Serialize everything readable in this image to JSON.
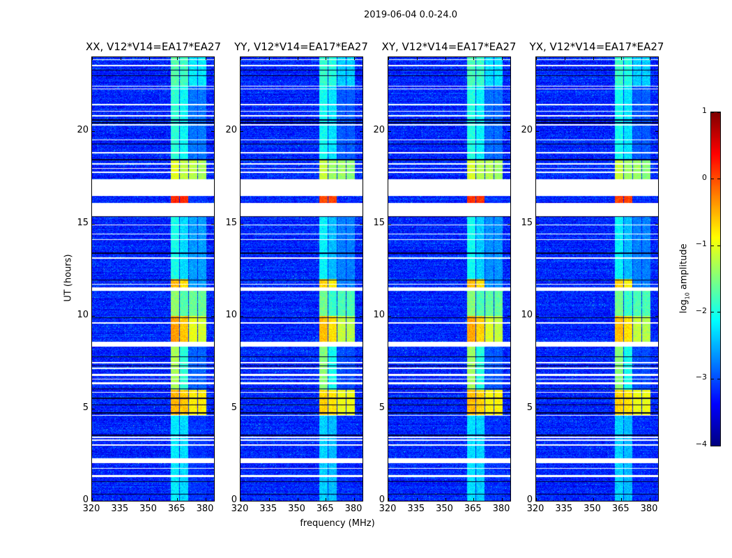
{
  "chart_data": {
    "type": "heatmap",
    "title": "2019-06-04 0.0-24.0",
    "xlabel": "frequency (MHz)",
    "ylabel": "UT (hours)",
    "xlim": [
      320,
      384.4
    ],
    "ylim": [
      0,
      24
    ],
    "xticks": [
      320,
      335,
      350,
      365,
      380
    ],
    "xtick_labels": [
      "320",
      "335",
      "350",
      "365",
      "380"
    ],
    "yticks": [
      0,
      5,
      10,
      15,
      20
    ],
    "ytick_labels": [
      "0",
      "5",
      "10",
      "15",
      "20"
    ],
    "panels": [
      {
        "title": "XX, V12*V14=EA17*EA27",
        "level_offset": 0.0
      },
      {
        "title": "YY, V12*V14=EA17*EA27",
        "level_offset": -0.15
      },
      {
        "title": "XY, V12*V14=EA17*EA27",
        "level_offset": -0.05
      },
      {
        "title": "YX, V12*V14=EA17*EA27",
        "level_offset": -0.15
      }
    ],
    "background_level": -3.2,
    "bands_mhz": [
      [
        361.5,
        366
      ],
      [
        366.3,
        370.6
      ],
      [
        371,
        375.4
      ],
      [
        375.8,
        380.3
      ]
    ],
    "segments": [
      {
        "t": [
          0,
          4.6
        ],
        "levels": [
          -2.2,
          -2.3,
          -3.2,
          -3.2
        ]
      },
      {
        "t": [
          4.6,
          6.0
        ],
        "levels": [
          -0.5,
          -0.6,
          -0.8,
          -0.8
        ]
      },
      {
        "t": [
          6.0,
          8.35
        ],
        "levels": [
          -1.3,
          -1.9,
          -2.9,
          -2.9
        ]
      },
      {
        "t": [
          8.6,
          10.0
        ],
        "levels": [
          -0.4,
          -0.6,
          -1.0,
          -1.1
        ]
      },
      {
        "t": [
          10.0,
          11.5
        ],
        "levels": [
          -1.4,
          -1.7,
          -1.6,
          -1.6
        ]
      },
      {
        "t": [
          11.5,
          12.0
        ],
        "levels": [
          -0.5,
          -0.7,
          -2.6,
          -2.6
        ]
      },
      {
        "t": [
          12.0,
          15.4
        ],
        "levels": [
          -2.0,
          -2.3,
          -2.6,
          -2.6
        ]
      },
      {
        "t": [
          16.1,
          16.5
        ],
        "levels": [
          0.2,
          0.2,
          -3.2,
          -3.2
        ]
      },
      {
        "t": [
          17.4,
          18.4
        ],
        "levels": [
          -1.0,
          -1.2,
          -1.2,
          -1.3
        ]
      },
      {
        "t": [
          18.4,
          22.4
        ],
        "levels": [
          -1.9,
          -2.1,
          -2.8,
          -2.8
        ]
      },
      {
        "t": [
          22.4,
          24
        ],
        "levels": [
          -1.7,
          -1.8,
          -2.2,
          -2.2
        ]
      }
    ],
    "flagged_hours": [
      [
        15.4,
        16.1
      ],
      [
        16.5,
        17.4
      ],
      [
        8.35,
        8.6
      ],
      [
        2.05,
        2.3
      ],
      [
        1.3,
        1.38
      ],
      [
        1.72,
        1.78
      ],
      [
        3.0,
        3.07
      ],
      [
        3.25,
        3.32
      ],
      [
        3.4,
        3.46
      ],
      [
        4.6,
        4.66
      ],
      [
        5.85,
        5.9
      ],
      [
        6.3,
        6.42
      ],
      [
        6.55,
        6.6
      ],
      [
        6.75,
        6.85
      ],
      [
        7.15,
        7.2
      ],
      [
        7.45,
        7.52
      ],
      [
        9.6,
        9.66
      ],
      [
        11.35,
        11.55
      ],
      [
        11.7,
        11.75
      ],
      [
        13.1,
        13.16
      ],
      [
        14.1,
        14.16
      ],
      [
        14.4,
        14.46
      ],
      [
        14.9,
        14.96
      ],
      [
        17.75,
        17.8
      ],
      [
        17.95,
        18.0
      ],
      [
        18.2,
        18.25
      ],
      [
        18.8,
        18.86
      ],
      [
        19.5,
        19.55
      ],
      [
        20.3,
        20.36
      ],
      [
        20.8,
        20.86
      ],
      [
        21.05,
        21.1
      ],
      [
        21.4,
        21.46
      ],
      [
        22.25,
        22.3
      ],
      [
        22.4,
        22.45
      ],
      [
        23.5,
        23.6
      ],
      [
        23.85,
        23.9
      ]
    ],
    "dark_rows_hours": [
      0.35,
      1.05,
      3.55,
      4.75,
      5.2,
      5.55,
      6.05,
      7.3,
      7.8,
      9.9,
      11.95,
      13.4,
      15.38,
      16.1,
      16.55,
      18.45,
      19.3,
      20.45,
      20.6,
      23.0,
      23.3
    ],
    "colorbar": {
      "label": "log10 amplitude",
      "label_main": "log",
      "label_sub": "10",
      "label_rest": " amplitude",
      "range": [
        -4,
        1
      ],
      "ticks": [
        1,
        0,
        -1,
        -2,
        -3,
        -4
      ],
      "tick_labels": [
        "1",
        "0",
        "−1",
        "−2",
        "−3",
        "−4"
      ],
      "colormap": "jet"
    }
  }
}
